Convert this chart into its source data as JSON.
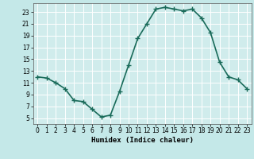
{
  "x": [
    0,
    1,
    2,
    3,
    4,
    5,
    6,
    7,
    8,
    9,
    10,
    11,
    12,
    13,
    14,
    15,
    16,
    17,
    18,
    19,
    20,
    21,
    22,
    23
  ],
  "y": [
    12.0,
    11.8,
    11.0,
    10.0,
    8.0,
    7.8,
    6.5,
    5.2,
    5.5,
    9.5,
    14.0,
    18.5,
    21.0,
    23.5,
    23.8,
    23.5,
    23.2,
    23.5,
    22.0,
    19.5,
    14.5,
    12.0,
    11.5,
    10.0
  ],
  "xlabel": "Humidex (Indice chaleur)",
  "ylim": [
    4,
    24.5
  ],
  "xlim": [
    -0.5,
    23.5
  ],
  "yticks": [
    5,
    7,
    9,
    11,
    13,
    15,
    17,
    19,
    21,
    23
  ],
  "xticks": [
    0,
    1,
    2,
    3,
    4,
    5,
    6,
    7,
    8,
    9,
    10,
    11,
    12,
    13,
    14,
    15,
    16,
    17,
    18,
    19,
    20,
    21,
    22,
    23
  ],
  "line_color": "#1a6b5a",
  "marker": "+",
  "bg_color": "#c4e8e8",
  "grid_color": "#ffffff",
  "plot_bg": "#d0ecec",
  "marker_size": 4,
  "line_width": 1.2
}
